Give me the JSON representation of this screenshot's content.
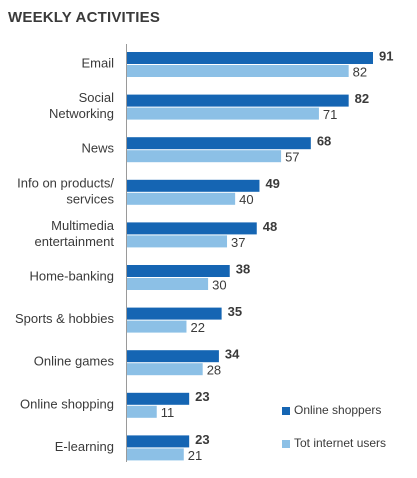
{
  "chart_data": {
    "type": "bar",
    "orientation": "horizontal",
    "title": "WEEKLY ACTIVITIES",
    "categories": [
      [
        "Email"
      ],
      [
        "Social",
        "Networking"
      ],
      [
        "News"
      ],
      [
        "Info on products/",
        "services"
      ],
      [
        "Multimedia",
        "entertainment"
      ],
      [
        "Home-banking"
      ],
      [
        "Sports & hobbies"
      ],
      [
        "Online games"
      ],
      [
        "Online shopping"
      ],
      [
        "E-learning"
      ]
    ],
    "series": [
      {
        "name": "Online shoppers",
        "color": "#1565b3",
        "values": [
          91,
          82,
          68,
          49,
          48,
          38,
          35,
          34,
          23,
          23
        ]
      },
      {
        "name": "Tot internet users",
        "color": "#8cc0e6",
        "values": [
          82,
          71,
          57,
          40,
          37,
          30,
          22,
          28,
          11,
          21
        ]
      }
    ],
    "xlim": [
      0,
      100
    ],
    "grid": false,
    "axis_line": true,
    "legend_position": "bottom-right"
  }
}
